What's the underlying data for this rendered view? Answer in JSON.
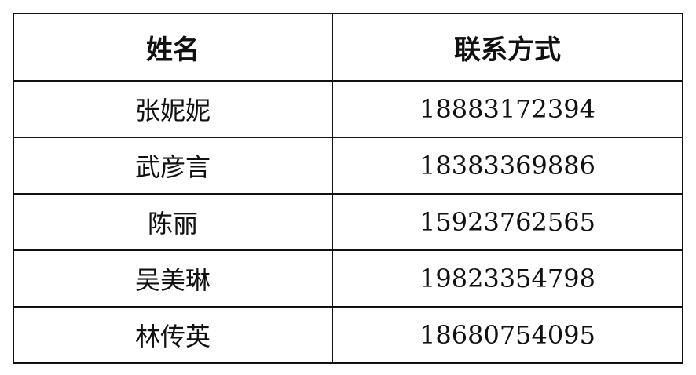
{
  "table": {
    "headers": [
      "姓名",
      "联系方式"
    ],
    "rows": [
      {
        "name": "张妮妮",
        "phone": "18883172394"
      },
      {
        "name": "武彦言",
        "phone": "18383369886"
      },
      {
        "name": "陈丽",
        "phone": "15923762565"
      },
      {
        "name": "吴美琳",
        "phone": "19823354798"
      },
      {
        "name": "林传英",
        "phone": "18680754095"
      }
    ]
  }
}
